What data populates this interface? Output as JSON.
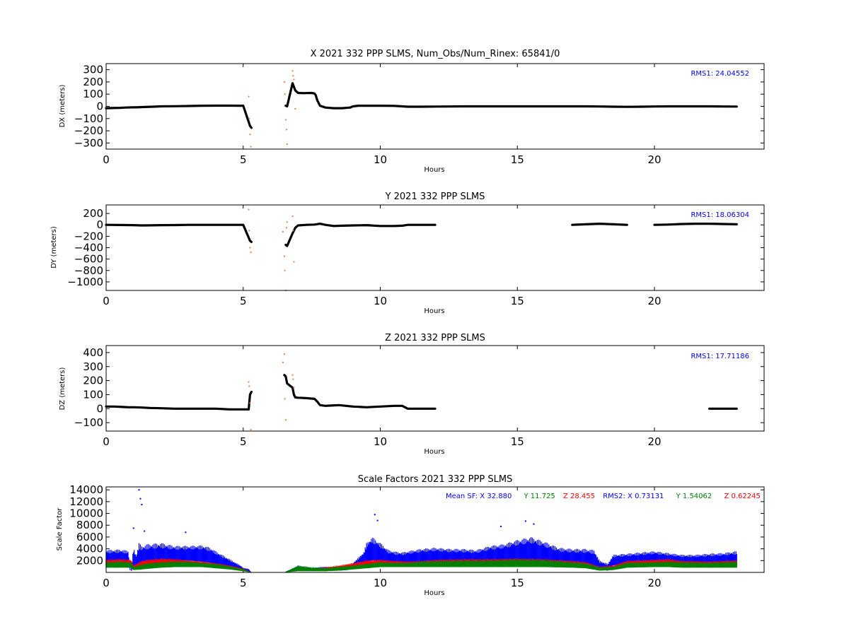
{
  "chart_data": [
    {
      "type": "scatter",
      "title": "X 2021 332 PPP  SLMS, Num_Obs/Num_Rinex: 65841/0",
      "xlabel": "Hours",
      "ylabel": "DX (meters)",
      "xlim": [
        0,
        24
      ],
      "ylim": [
        -350,
        350
      ],
      "xticks": [
        0,
        5,
        10,
        15,
        20
      ],
      "yticks": [
        -300,
        -200,
        -100,
        0,
        100,
        200,
        300
      ],
      "ytick_labels": [
        "−300",
        "−200",
        "−100",
        "0",
        "100",
        "200",
        "300"
      ],
      "annotation": "RMS1: 24.04552",
      "annotation_color": "#0000ff",
      "series": [
        {
          "color": "#000000",
          "x": [
            0.0,
            0.2,
            0.5,
            0.7,
            1.0,
            1.1,
            1.4,
            1.7,
            2.0,
            2.5,
            3.0,
            3.5,
            4.0,
            4.5,
            4.9,
            5.0,
            5.25,
            5.3,
            6.55,
            6.6,
            6.8,
            6.85,
            6.9,
            7.0,
            7.2,
            7.5,
            7.6,
            7.65,
            7.7,
            7.8,
            8.0,
            8.3,
            8.6,
            8.9,
            9.0,
            9.2,
            9.5,
            10.0,
            10.5,
            10.8,
            11.0,
            11.5,
            12.0,
            12.5,
            13.0,
            13.5,
            14.0,
            14.5,
            15.0,
            15.5,
            16.0,
            16.5,
            17.0,
            17.5,
            18.0,
            18.5,
            19.0,
            19.5,
            20.0,
            20.5,
            21.0,
            21.5,
            22.0,
            22.5,
            23.0
          ],
          "y": [
            -15,
            -14,
            -12,
            -10,
            -8,
            -8,
            -5,
            -3,
            0,
            1,
            3,
            5,
            6,
            6,
            5,
            5,
            -160,
            -175,
            5,
            0,
            190,
            160,
            130,
            110,
            108,
            110,
            105,
            90,
            50,
            5,
            -10,
            -15,
            -15,
            -10,
            0,
            5,
            5,
            5,
            4,
            0,
            -3,
            -3,
            -2,
            -1,
            0,
            0,
            0,
            0,
            0,
            0,
            0,
            0,
            0,
            0,
            -1,
            -3,
            -4,
            -3,
            -1,
            0,
            0,
            0,
            0,
            -1,
            -2
          ]
        },
        {
          "color": "#e8834e",
          "x": [
            5.2,
            5.22,
            5.25,
            5.28,
            6.5,
            6.52,
            6.55,
            6.58,
            6.6,
            6.8,
            6.82,
            6.85,
            6.9
          ],
          "y": [
            80,
            -100,
            -230,
            -330,
            200,
            100,
            -110,
            -190,
            -310,
            290,
            250,
            220,
            -20
          ],
          "marker": "minor"
        }
      ]
    },
    {
      "type": "scatter",
      "title": "Y 2021 332 PPP  SLMS",
      "xlabel": "Hours",
      "ylabel": "DY (meters)",
      "xlim": [
        0,
        24
      ],
      "ylim": [
        -1150,
        350
      ],
      "xticks": [
        0,
        5,
        10,
        15,
        20
      ],
      "yticks": [
        -1000,
        -800,
        -600,
        -400,
        -200,
        0,
        200
      ],
      "ytick_labels": [
        "−1000",
        "−800",
        "−600",
        "−400",
        "−200",
        "0",
        "200"
      ],
      "annotation": "RMS1: 18.06304",
      "annotation_color": "#0000ff",
      "series": [
        {
          "color": "#000000",
          "x": [
            0.0,
            0.5,
            1.0,
            1.3,
            1.6,
            2.0,
            2.5,
            3.0,
            3.5,
            4.0,
            4.5,
            4.9,
            5.0,
            5.25,
            5.3,
            6.55,
            6.6,
            6.8,
            6.9,
            7.0,
            7.3,
            7.6,
            7.8,
            8.0,
            8.3,
            8.6,
            9.0,
            9.5,
            10.0,
            10.5,
            10.8,
            11.0,
            11.5,
            12.0,
            13.0,
            14.0,
            15.0,
            16.0,
            17.0,
            17.5,
            18.0,
            18.5,
            19.0,
            20.0,
            20.5,
            21.0,
            21.5,
            22.0,
            22.5,
            23.0
          ],
          "y": [
            0,
            -2,
            -5,
            -10,
            -8,
            -5,
            -3,
            0,
            0,
            0,
            0,
            0,
            0,
            -280,
            -300,
            -350,
            -370,
            -150,
            -50,
            -10,
            0,
            5,
            20,
            0,
            -20,
            -15,
            -10,
            -5,
            -20,
            -20,
            -15,
            0,
            0,
            0,
            0,
            0,
            0,
            0,
            0,
            10,
            20,
            10,
            0,
            0,
            5,
            15,
            20,
            20,
            15,
            10
          ]
        },
        {
          "color": "#e8834e",
          "x": [
            5.2,
            5.22,
            5.25,
            5.28,
            6.45,
            6.5,
            6.52,
            6.55,
            6.58,
            6.6,
            6.8,
            6.82,
            6.85
          ],
          "y": [
            270,
            -100,
            -400,
            -480,
            -120,
            -550,
            -800,
            -1150,
            -50,
            50,
            150,
            -100,
            -650
          ],
          "marker": "minor"
        }
      ]
    },
    {
      "type": "scatter",
      "title": "Z 2021 332 PPP  SLMS",
      "xlabel": "Hours",
      "ylabel": "DZ (meters)",
      "xlim": [
        0,
        24
      ],
      "ylim": [
        -160,
        450
      ],
      "xticks": [
        0,
        5,
        10,
        15,
        20
      ],
      "yticks": [
        -100,
        0,
        100,
        200,
        300,
        400
      ],
      "ytick_labels": [
        "−100",
        "0",
        "100",
        "200",
        "300",
        "400"
      ],
      "annotation": "RMS1: 17.71186",
      "annotation_color": "#0000ff",
      "series": [
        {
          "color": "#000000",
          "x": [
            0.0,
            0.3,
            0.6,
            0.8,
            1.0,
            1.3,
            1.6,
            2.0,
            2.5,
            3.0,
            3.5,
            4.0,
            4.5,
            4.9,
            5.0,
            5.2,
            5.25,
            5.3,
            6.5,
            6.55,
            6.6,
            6.8,
            6.85,
            6.9,
            7.0,
            7.3,
            7.6,
            7.7,
            7.8,
            8.0,
            8.2,
            8.5,
            9.0,
            9.5,
            10.0,
            10.5,
            10.8,
            10.9,
            11.0,
            11.5,
            12.0,
            13.0,
            14.0,
            15.0,
            16.0,
            17.0,
            18.0,
            19.0,
            20.0,
            21.0,
            22.0,
            22.5,
            23.0
          ],
          "y": [
            15,
            15,
            12,
            10,
            10,
            8,
            5,
            3,
            0,
            0,
            0,
            0,
            -5,
            -5,
            -5,
            -5,
            100,
            120,
            240,
            230,
            180,
            150,
            100,
            80,
            78,
            75,
            70,
            50,
            25,
            20,
            22,
            25,
            15,
            10,
            15,
            20,
            20,
            10,
            0,
            0,
            0,
            0,
            0,
            0,
            0,
            0,
            0,
            0,
            0,
            0,
            0,
            0,
            0
          ]
        },
        {
          "color": "#e8834e",
          "x": [
            5.2,
            5.22,
            5.25,
            5.28,
            6.45,
            6.5,
            6.52,
            6.55,
            6.8,
            6.82,
            6.85
          ],
          "y": [
            190,
            160,
            40,
            -150,
            330,
            390,
            70,
            -80,
            240,
            210,
            150
          ],
          "marker": "minor"
        }
      ]
    },
    {
      "type": "scatter",
      "title": "Scale Factors 2021 332 PPP  SLMS",
      "xlabel": "Hours",
      "ylabel": "Scale Factor",
      "xlim": [
        0,
        24
      ],
      "ylim": [
        0,
        14500
      ],
      "xticks": [
        0,
        5,
        10,
        15,
        20
      ],
      "yticks": [
        2000,
        4000,
        6000,
        8000,
        10000,
        12000,
        14000
      ],
      "ytick_labels": [
        "2000",
        "4000",
        "6000",
        "8000",
        "10000",
        "12000",
        "14000"
      ],
      "annotation_parts": [
        {
          "text": "Mean SF: X  32.880",
          "color": "#0000ff"
        },
        {
          "text": "Y  11.725",
          "color": "#008000"
        },
        {
          "text": "Z  28.455",
          "color": "#ff0000"
        },
        {
          "text": "RMS2: X  0.73131",
          "color": "#0000ff"
        },
        {
          "text": "Y  1.54062",
          "color": "#008000"
        },
        {
          "text": "Z  0.62245",
          "color": "#ff0000"
        }
      ],
      "envelopes": [
        {
          "name": "X",
          "color": "#0000ff",
          "x": [
            0.0,
            0.5,
            0.8,
            0.9,
            1.0,
            1.1,
            1.2,
            1.3,
            1.5,
            2.0,
            2.5,
            3.0,
            3.5,
            3.8,
            4.0,
            4.3,
            4.6,
            4.9,
            5.0,
            5.2,
            5.3,
            6.5,
            7.0,
            7.5,
            8.0,
            8.5,
            8.8,
            9.0,
            9.2,
            9.4,
            9.5,
            9.7,
            10.0,
            10.3,
            10.6,
            10.8,
            11.0,
            11.5,
            12.0,
            12.5,
            13.0,
            13.5,
            14.0,
            14.5,
            15.0,
            15.3,
            15.5,
            16.0,
            16.5,
            17.0,
            17.5,
            17.8,
            18.0,
            18.3,
            18.5,
            19.0,
            19.5,
            20.0,
            20.5,
            21.0,
            21.5,
            22.0,
            22.5,
            23.0
          ],
          "top": [
            3800,
            3900,
            3700,
            0,
            4200,
            3000,
            5000,
            4500,
            4800,
            5000,
            4500,
            4500,
            4600,
            4200,
            3600,
            2800,
            2000,
            1200,
            800,
            600,
            0,
            0,
            1200,
            800,
            1000,
            800,
            1200,
            1600,
            2500,
            3500,
            5000,
            6000,
            5000,
            3800,
            3500,
            3400,
            3600,
            4000,
            4200,
            4000,
            4000,
            3800,
            4500,
            4800,
            5500,
            5800,
            6000,
            5200,
            4200,
            4000,
            4000,
            3800,
            2000,
            1500,
            3000,
            3200,
            3400,
            3600,
            3300,
            3000,
            3000,
            3200,
            3300,
            3600
          ],
          "bottom": [
            1500,
            1500,
            1500,
            0,
            1000,
            500,
            1000,
            1100,
            1200,
            1400,
            1800,
            2000,
            1800,
            1600,
            1400,
            1200,
            800,
            500,
            300,
            200,
            0,
            0,
            400,
            300,
            300,
            300,
            400,
            800,
            1200,
            1500,
            1800,
            2000,
            1800,
            1500,
            1400,
            1500,
            1600,
            1700,
            1800,
            1700,
            1600,
            1600,
            1700,
            1800,
            1800,
            1800,
            1800,
            1600,
            1500,
            1400,
            1200,
            1000,
            500,
            300,
            1200,
            1300,
            1400,
            1600,
            1500,
            1400,
            1300,
            1300,
            1400,
            1400
          ]
        },
        {
          "name": "Z",
          "color": "#ff0000",
          "x": [
            0.0,
            0.5,
            0.9,
            1.0,
            1.3,
            1.5,
            2.0,
            2.5,
            3.0,
            3.5,
            4.0,
            4.5,
            5.0,
            5.3,
            6.5,
            7.0,
            7.5,
            8.0,
            8.5,
            9.0,
            9.5,
            10.0,
            10.5,
            11.0,
            11.5,
            12.0,
            13.0,
            14.0,
            15.0,
            16.0,
            17.0,
            17.5,
            18.0,
            18.5,
            19.0,
            20.0,
            20.5,
            21.0,
            22.0,
            23.0
          ],
          "top": [
            2200,
            2300,
            2200,
            1200,
            2000,
            2200,
            2400,
            2300,
            2100,
            1900,
            1600,
            1200,
            700,
            0,
            0,
            900,
            700,
            900,
            1200,
            1600,
            2100,
            2200,
            2000,
            1900,
            2000,
            2200,
            2300,
            2300,
            2400,
            2300,
            2000,
            1800,
            1000,
            1200,
            2000,
            2200,
            2300,
            2000,
            1900,
            2100
          ],
          "bottom": [
            1200,
            1200,
            1200,
            700,
            900,
            1000,
            1200,
            1300,
            1300,
            1200,
            1000,
            700,
            300,
            0,
            0,
            300,
            300,
            300,
            500,
            800,
            1000,
            1200,
            1200,
            1100,
            1100,
            1200,
            1200,
            1200,
            1300,
            1200,
            1100,
            900,
            400,
            600,
            1100,
            1200,
            1200,
            1100,
            1000,
            1100
          ]
        },
        {
          "name": "Y",
          "color": "#008000",
          "x": [
            0.0,
            0.5,
            0.9,
            1.0,
            1.3,
            1.5,
            2.0,
            2.5,
            3.0,
            3.5,
            4.0,
            4.5,
            5.0,
            5.3,
            6.5,
            7.0,
            7.5,
            8.0,
            8.5,
            9.0,
            9.5,
            10.0,
            10.5,
            11.0,
            11.5,
            12.0,
            13.0,
            14.0,
            15.0,
            16.0,
            17.0,
            17.5,
            18.0,
            18.5,
            19.0,
            20.0,
            20.5,
            21.0,
            22.0,
            23.0
          ],
          "top": [
            1800,
            1900,
            1800,
            1000,
            1400,
            1600,
            1800,
            1900,
            1900,
            1700,
            1500,
            1100,
            600,
            0,
            0,
            1200,
            900,
            800,
            1000,
            1200,
            1500,
            1800,
            1700,
            1700,
            1900,
            2000,
            2100,
            2100,
            2300,
            2200,
            1800,
            1600,
            900,
            1000,
            1700,
            1800,
            1900,
            1800,
            1700,
            1900
          ],
          "bottom": [
            800,
            800,
            800,
            400,
            500,
            600,
            800,
            900,
            900,
            900,
            700,
            500,
            200,
            0,
            0,
            200,
            200,
            200,
            300,
            500,
            700,
            900,
            900,
            900,
            900,
            900,
            900,
            900,
            900,
            900,
            800,
            700,
            300,
            400,
            800,
            900,
            900,
            800,
            800,
            800
          ]
        }
      ],
      "spikes": [
        {
          "x": 1.2,
          "y": 14000,
          "color": "#0000ff"
        },
        {
          "x": 1.25,
          "y": 12500,
          "color": "#0000ff"
        },
        {
          "x": 1.3,
          "y": 11500,
          "color": "#0000ff"
        },
        {
          "x": 1.0,
          "y": 7500,
          "color": "#0000ff"
        },
        {
          "x": 1.4,
          "y": 7000,
          "color": "#0000ff"
        },
        {
          "x": 2.9,
          "y": 6800,
          "color": "#0000ff"
        },
        {
          "x": 9.8,
          "y": 9800,
          "color": "#0000ff"
        },
        {
          "x": 9.9,
          "y": 8800,
          "color": "#0000ff"
        },
        {
          "x": 15.3,
          "y": 8700,
          "color": "#0000ff"
        },
        {
          "x": 15.6,
          "y": 8200,
          "color": "#0000ff"
        },
        {
          "x": 14.4,
          "y": 7800,
          "color": "#0000ff"
        }
      ]
    }
  ]
}
